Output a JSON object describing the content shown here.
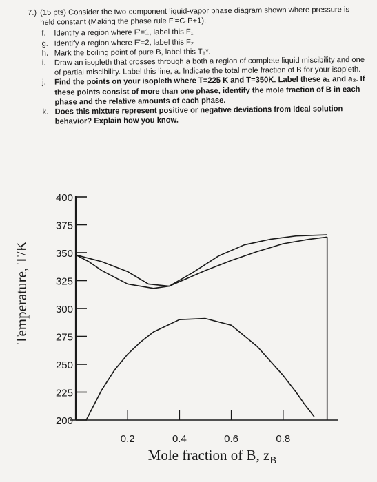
{
  "problem": {
    "number": "7.)",
    "stem": "(15 pts) Consider the two-component liquid-vapor phase diagram shown where pressure is held constant (Making the phase rule F'=C-P+1):",
    "parts": [
      {
        "letter": "f.",
        "text": "Identify a region where F'=1, label this F₁"
      },
      {
        "letter": "g.",
        "text": "Identify a region where F'=2, label this F₂"
      },
      {
        "letter": "h.",
        "text": "Mark the boiling point of pure B, label this T₈*."
      },
      {
        "letter": "i.",
        "text": "Draw an isopleth that crosses through a both a region of complete liquid miscibility and one of partial miscibility. Label this line, a. Indicate the total mole fraction of B for your isopleth."
      },
      {
        "letter": "j.",
        "text": "Find the points on your isopleth where T=225 K and T=350K. Label these a₁ and a₂. If these points consist of more than one phase, identify the mole fraction of B in each phase and the relative amounts of each phase."
      },
      {
        "letter": "k.",
        "text": "Does this mixture represent positive or negative deviations from ideal solution behavior? Explain how you know."
      }
    ]
  },
  "chart_data": {
    "type": "line",
    "xlabel": "Mole fraction of B, z",
    "xlabel_subscript": "B",
    "ylabel": "Temperature, T/K",
    "xlim": [
      0,
      1
    ],
    "ylim": [
      200,
      400
    ],
    "x_ticks": [
      0.2,
      0.4,
      0.6,
      0.8
    ],
    "x_tick_labels": [
      "0.2",
      "0.4",
      "0.6",
      "0.8"
    ],
    "y_ticks": [
      200,
      225,
      250,
      275,
      300,
      325,
      350,
      375,
      400
    ],
    "y_tick_labels": [
      "200",
      "225",
      "250",
      "275",
      "300",
      "325",
      "350",
      "375",
      "400"
    ],
    "series": [
      {
        "x": [
          0.0,
          0.05,
          0.1,
          0.2,
          0.3,
          0.36,
          0.4,
          0.5,
          0.6,
          0.7,
          0.8,
          0.9,
          0.97
        ],
        "y": [
          348,
          342,
          334,
          322,
          318,
          320,
          324,
          334,
          343,
          351,
          358,
          362,
          364
        ]
      },
      {
        "x": [
          0.0,
          0.1,
          0.2,
          0.28,
          0.36,
          0.45,
          0.55,
          0.65,
          0.75,
          0.85,
          0.97
        ],
        "y": [
          348,
          342,
          333,
          322,
          320,
          332,
          347,
          357,
          362,
          365,
          366
        ]
      },
      {
        "x": [
          0.04,
          0.1,
          0.15,
          0.2,
          0.25,
          0.3,
          0.4,
          0.5,
          0.6,
          0.7,
          0.8,
          0.85,
          0.88,
          0.9,
          0.92
        ],
        "y": [
          200,
          227,
          245,
          259,
          270,
          279,
          290,
          291,
          285,
          266,
          240,
          225,
          215,
          209,
          203
        ]
      },
      {
        "x": [
          0.0,
          0.0
        ],
        "y": [
          200,
          348
        ]
      },
      {
        "x": [
          0.97,
          0.97
        ],
        "y": [
          200,
          364
        ]
      }
    ],
    "grid": false
  }
}
